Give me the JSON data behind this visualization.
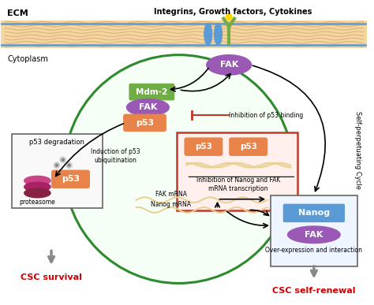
{
  "bg_color": "#ffffff",
  "ecm_color": "#f5d5a0",
  "ecm_stripe_color": "#c8a060",
  "cell_circle_color": "#2d8a2d",
  "cell_circle_fill": "#f5fff5",
  "fak_top_color": "#9b59b6",
  "integrin_color": "#5b9bd5",
  "receptor_color": "#70ad47",
  "mdm2_color": "#70ad47",
  "fak_inner_color": "#9b59b6",
  "p53_orange_color": "#e8834a",
  "nanog_box_color": "#5b9bd5",
  "fak_bottom_color": "#9b59b6",
  "inhibition_box_border": "#c0392b",
  "inhibition_box_fill": "#fff0ee",
  "title_text": "Integrins, Growth factors, Cytokines",
  "ecm_label": "ECM",
  "cytoplasm_label": "Cytoplasm",
  "csc_survival_label": "CSC survival",
  "csc_renewal_label": "CSC self-renewal",
  "self_perp_label": "Self-perpetuating Cycle",
  "inhibition_p53_label": "Inhibition of p53 binding",
  "inhibition_nanog_label": "Inhibition of Nanog and FAK\nmRNA transcription",
  "induction_label": "Induction of p53\nubiquitination",
  "p53_degradation_label": "p53 degradation",
  "proteasome_label": "proteasome",
  "over_expression_label": "Over-expression and interaction",
  "fak_mrna_label": "FAK mRNA",
  "nanog_mrna_label": "Nanog mRNA",
  "nanog_label": "Nanog",
  "fak_label": "FAK",
  "mdm2_label": "Mdm-2",
  "p53_label": "p53"
}
